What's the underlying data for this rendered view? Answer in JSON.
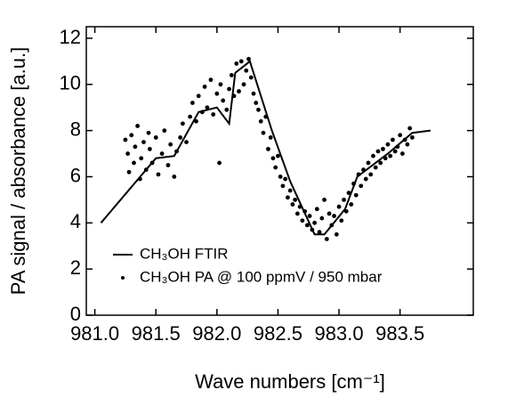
{
  "chart_data": {
    "type": "line",
    "x_label": "Wave numbers [cm⁻¹]",
    "y_label": "PA signal / absorbance [a.u.]",
    "xlim": [
      980.93,
      984.1
    ],
    "ylim": [
      0,
      12.5
    ],
    "xticks": [
      {
        "value": 981,
        "label": "981.0"
      },
      981.5,
      {
        "value": 982,
        "label": "982.0"
      },
      982.5,
      {
        "value": 983,
        "label": "983.0"
      },
      983.5
    ],
    "yticks": [
      0,
      2,
      4,
      6,
      8,
      10,
      12
    ],
    "legend": "lower left",
    "series": [
      {
        "name": "CH₃OH FTIR",
        "type": "line",
        "color": "#000000",
        "x": [
          981.05,
          981.5,
          981.65,
          981.85,
          982.0,
          982.1,
          982.15,
          982.27,
          982.45,
          982.6,
          982.8,
          982.88,
          983.05,
          983.15,
          983.4,
          983.6,
          983.75
        ],
        "values": [
          4.0,
          6.8,
          6.9,
          8.8,
          9.0,
          8.3,
          10.5,
          11.0,
          8.0,
          5.8,
          3.5,
          3.5,
          4.6,
          6.0,
          7.0,
          7.9,
          8.0
        ]
      },
      {
        "name": "CH₃OH PA @ 100 ppmV / 950 mbar",
        "type": "scatter",
        "color": "#000000",
        "x": [
          981.25,
          981.27,
          981.28,
          981.3,
          981.32,
          981.33,
          981.35,
          981.37,
          981.38,
          981.4,
          981.42,
          981.44,
          981.45,
          981.47,
          981.5,
          981.52,
          981.55,
          981.57,
          981.6,
          981.62,
          981.65,
          981.67,
          981.7,
          981.72,
          981.75,
          981.78,
          981.8,
          981.83,
          981.85,
          981.88,
          981.9,
          981.92,
          981.95,
          981.97,
          982.0,
          982.02,
          982.03,
          982.05,
          982.08,
          982.1,
          982.12,
          982.14,
          982.16,
          982.18,
          982.2,
          982.22,
          982.24,
          982.26,
          982.28,
          982.3,
          982.32,
          982.34,
          982.36,
          982.38,
          982.4,
          982.42,
          982.44,
          982.46,
          982.48,
          982.5,
          982.52,
          982.54,
          982.56,
          982.58,
          982.6,
          982.62,
          982.64,
          982.66,
          982.68,
          982.7,
          982.72,
          982.74,
          982.76,
          982.78,
          982.8,
          982.82,
          982.84,
          982.86,
          982.88,
          982.9,
          982.92,
          982.94,
          982.96,
          982.98,
          983.0,
          983.02,
          983.04,
          983.06,
          983.08,
          983.1,
          983.12,
          983.14,
          983.16,
          983.18,
          983.2,
          983.22,
          983.24,
          983.26,
          983.28,
          983.3,
          983.32,
          983.34,
          983.36,
          983.38,
          983.4,
          983.42,
          983.44,
          983.46,
          983.48,
          983.5,
          983.52,
          983.54,
          983.56,
          983.58,
          983.6
        ],
        "values": [
          7.6,
          7.0,
          6.2,
          7.8,
          6.6,
          7.3,
          8.2,
          5.9,
          6.8,
          7.5,
          6.3,
          7.9,
          7.2,
          6.6,
          7.7,
          6.1,
          7.0,
          8.0,
          6.5,
          7.4,
          6.0,
          7.1,
          7.7,
          8.3,
          7.5,
          8.6,
          9.2,
          8.4,
          9.5,
          8.8,
          9.9,
          9.0,
          10.2,
          8.7,
          9.6,
          6.6,
          10.0,
          9.3,
          8.9,
          9.8,
          10.4,
          9.5,
          10.9,
          9.7,
          11.0,
          10.0,
          10.6,
          11.1,
          10.3,
          9.6,
          9.2,
          8.9,
          8.4,
          7.9,
          8.6,
          7.2,
          7.7,
          6.8,
          6.4,
          6.9,
          6.0,
          5.6,
          5.9,
          5.1,
          5.4,
          4.8,
          5.0,
          4.4,
          4.7,
          4.1,
          4.5,
          3.9,
          4.3,
          3.7,
          4.0,
          4.6,
          3.6,
          4.2,
          5.0,
          3.3,
          4.4,
          3.9,
          4.3,
          3.5,
          4.7,
          4.1,
          5.0,
          4.5,
          5.3,
          4.8,
          5.7,
          5.2,
          6.1,
          5.6,
          6.3,
          5.9,
          6.6,
          6.1,
          6.9,
          6.4,
          7.1,
          6.6,
          7.2,
          6.8,
          7.4,
          6.9,
          7.6,
          7.1,
          7.3,
          7.8,
          7.0,
          7.6,
          7.4,
          8.1,
          7.7
        ]
      }
    ]
  }
}
